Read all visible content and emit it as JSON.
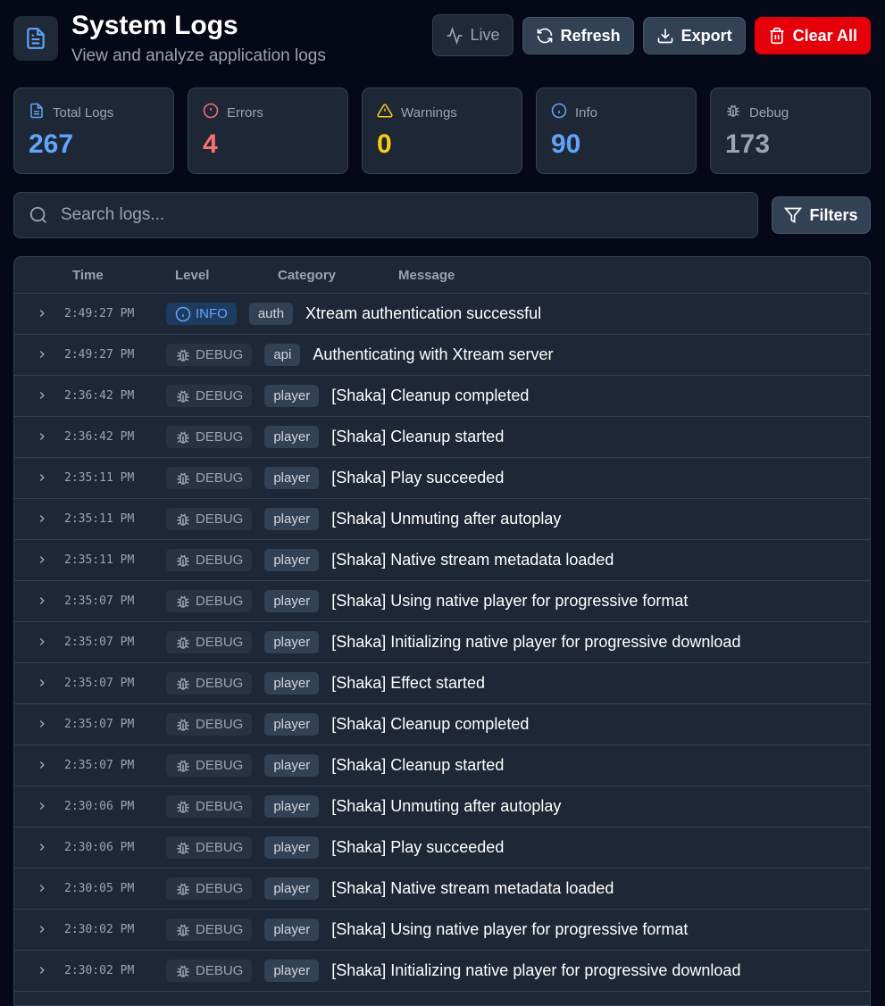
{
  "header": {
    "title": "System Logs",
    "subtitle": "View and analyze application logs",
    "live": "Live",
    "refresh": "Refresh",
    "export": "Export",
    "clear": "Clear All"
  },
  "stats": [
    {
      "label": "Total Logs",
      "value": "267",
      "color": "#60a5fa",
      "icon": "file-text"
    },
    {
      "label": "Errors",
      "value": "4",
      "color": "#f87171",
      "icon": "alert-circle"
    },
    {
      "label": "Warnings",
      "value": "0",
      "color": "#facc15",
      "icon": "alert-triangle"
    },
    {
      "label": "Info",
      "value": "90",
      "color": "#60a5fa",
      "icon": "info"
    },
    {
      "label": "Debug",
      "value": "173",
      "color": "#9ca3af",
      "icon": "bug"
    }
  ],
  "search": {
    "placeholder": "Search logs...",
    "filters": "Filters"
  },
  "table": {
    "headers": {
      "time": "Time",
      "level": "Level",
      "category": "Category",
      "message": "Message"
    },
    "rows": [
      {
        "time": "2:49:27 PM",
        "level": "INFO",
        "category": "auth",
        "message": "Xtream authentication successful"
      },
      {
        "time": "2:49:27 PM",
        "level": "DEBUG",
        "category": "api",
        "message": "Authenticating with Xtream server"
      },
      {
        "time": "2:36:42 PM",
        "level": "DEBUG",
        "category": "player",
        "message": "[Shaka] Cleanup completed"
      },
      {
        "time": "2:36:42 PM",
        "level": "DEBUG",
        "category": "player",
        "message": "[Shaka] Cleanup started"
      },
      {
        "time": "2:35:11 PM",
        "level": "DEBUG",
        "category": "player",
        "message": "[Shaka] Play succeeded"
      },
      {
        "time": "2:35:11 PM",
        "level": "DEBUG",
        "category": "player",
        "message": "[Shaka] Unmuting after autoplay"
      },
      {
        "time": "2:35:11 PM",
        "level": "DEBUG",
        "category": "player",
        "message": "[Shaka] Native stream metadata loaded"
      },
      {
        "time": "2:35:07 PM",
        "level": "DEBUG",
        "category": "player",
        "message": "[Shaka] Using native player for progressive format"
      },
      {
        "time": "2:35:07 PM",
        "level": "DEBUG",
        "category": "player",
        "message": "[Shaka] Initializing native player for progressive download"
      },
      {
        "time": "2:35:07 PM",
        "level": "DEBUG",
        "category": "player",
        "message": "[Shaka] Effect started"
      },
      {
        "time": "2:35:07 PM",
        "level": "DEBUG",
        "category": "player",
        "message": "[Shaka] Cleanup completed"
      },
      {
        "time": "2:35:07 PM",
        "level": "DEBUG",
        "category": "player",
        "message": "[Shaka] Cleanup started"
      },
      {
        "time": "2:30:06 PM",
        "level": "DEBUG",
        "category": "player",
        "message": "[Shaka] Unmuting after autoplay"
      },
      {
        "time": "2:30:06 PM",
        "level": "DEBUG",
        "category": "player",
        "message": "[Shaka] Play succeeded"
      },
      {
        "time": "2:30:05 PM",
        "level": "DEBUG",
        "category": "player",
        "message": "[Shaka] Native stream metadata loaded"
      },
      {
        "time": "2:30:02 PM",
        "level": "DEBUG",
        "category": "player",
        "message": "[Shaka] Using native player for progressive format"
      },
      {
        "time": "2:30:02 PM",
        "level": "DEBUG",
        "category": "player",
        "message": "[Shaka] Initializing native player for progressive download"
      }
    ]
  }
}
